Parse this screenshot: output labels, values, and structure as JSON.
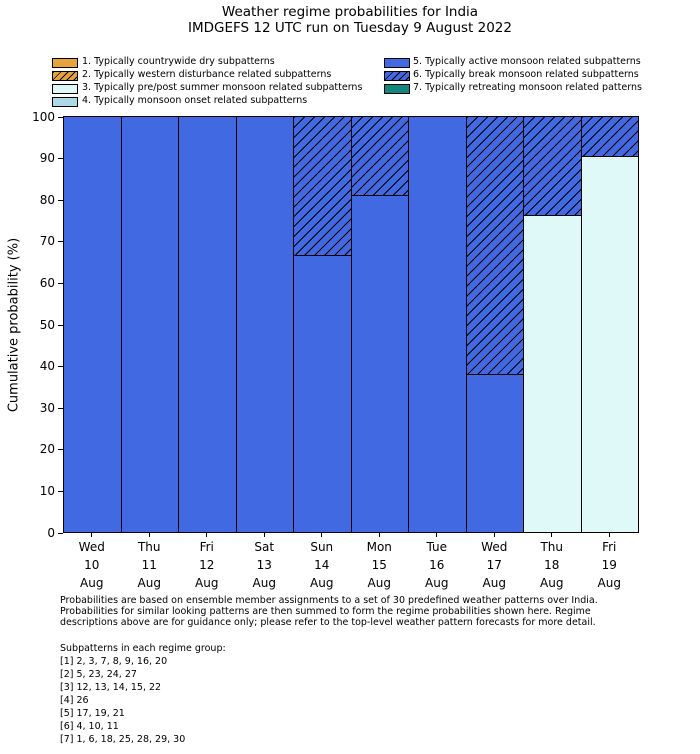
{
  "title": {
    "line1": "Weather regime probabilities for India",
    "line2": "IMDGEFS 12 UTC run on Tuesday 9 August 2022"
  },
  "colors": {
    "regime_dry_orange": "#E6A23C",
    "regime_premonsoon_cyan": "#DFF8F8",
    "regime_onset_lightblue": "#ADD8E6",
    "regime_active_blue": "#4169E1",
    "regime_retreating_teal": "#12877D",
    "bar_edge": "#000000",
    "hatch": "#000000"
  },
  "legend": {
    "items": [
      {
        "label": "1. Typically countrywide dry subpatterns",
        "color": "#E6A23C",
        "hatched": false
      },
      {
        "label": "2. Typically western disturbance related subpatterns",
        "color": "#E6A23C",
        "hatched": true
      },
      {
        "label": "3. Typically pre/post summer monsoon related subpatterns",
        "color": "#DFF8F8",
        "hatched": false
      },
      {
        "label": "4. Typically monsoon onset related subpatterns",
        "color": "#ADD8E6",
        "hatched": false
      },
      {
        "label": "5. Typically active monsoon related subpatterns",
        "color": "#4169E1",
        "hatched": false
      },
      {
        "label": "6. Typically break monsoon related subpatterns",
        "color": "#4169E1",
        "hatched": true
      },
      {
        "label": "7. Typically retreating monsoon related patterns",
        "color": "#12877D",
        "hatched": false
      }
    ]
  },
  "chart_data": {
    "type": "bar",
    "stacked": true,
    "title": "Weather regime probabilities for India — IMDGEFS 12 UTC run on Tuesday 9 August 2022",
    "xlabel": "",
    "ylabel": "Cumulative probability (%)",
    "ylim": [
      0,
      100
    ],
    "yticks": [
      0,
      10,
      20,
      30,
      40,
      50,
      60,
      70,
      80,
      90,
      100
    ],
    "grid": false,
    "legend_position": "above-plot, two columns",
    "categories": [
      {
        "day": "Wed",
        "date": "10",
        "month": "Aug"
      },
      {
        "day": "Thu",
        "date": "11",
        "month": "Aug"
      },
      {
        "day": "Fri",
        "date": "12",
        "month": "Aug"
      },
      {
        "day": "Sat",
        "date": "13",
        "month": "Aug"
      },
      {
        "day": "Sun",
        "date": "14",
        "month": "Aug"
      },
      {
        "day": "Mon",
        "date": "15",
        "month": "Aug"
      },
      {
        "day": "Tue",
        "date": "16",
        "month": "Aug"
      },
      {
        "day": "Wed",
        "date": "17",
        "month": "Aug"
      },
      {
        "day": "Thu",
        "date": "18",
        "month": "Aug"
      },
      {
        "day": "Fri",
        "date": "19",
        "month": "Aug"
      }
    ],
    "series": [
      {
        "name": "3. Typically pre/post summer monsoon related subpatterns",
        "color": "#DFF8F8",
        "hatched": false,
        "values": [
          0,
          0,
          0,
          0,
          0,
          0,
          0,
          0,
          76.2,
          90.5
        ]
      },
      {
        "name": "5. Typically active monsoon related subpatterns",
        "color": "#4169E1",
        "hatched": false,
        "values": [
          100,
          100,
          100,
          100,
          66.7,
          81.0,
          100,
          38.1,
          0,
          0
        ]
      },
      {
        "name": "6. Typically break monsoon related subpatterns",
        "color": "#4169E1",
        "hatched": true,
        "values": [
          0,
          0,
          0,
          0,
          33.3,
          19.0,
          0,
          61.9,
          23.8,
          9.5
        ]
      }
    ]
  },
  "footer": {
    "lines": [
      "Probabilities are based on ensemble member assignments to a set of 30 predefined weather patterns over India.",
      "Probabilities for similar looking patterns are then summed to form the regime probabilities shown here. Regime",
      "descriptions above are for guidance only; please refer to the top-level weather pattern forecasts for more detail."
    ]
  },
  "subpatterns": {
    "heading": "Subpatterns in each regime group:",
    "groups": [
      "[1] 2, 3, 7, 8, 9, 16, 20",
      "[2] 5, 23, 24, 27",
      "[3] 12, 13, 14, 15, 22",
      "[4] 26",
      "[5] 17, 19, 21",
      "[6] 4, 10, 11",
      "[7] 1, 6, 18, 25, 28, 29, 30"
    ]
  }
}
